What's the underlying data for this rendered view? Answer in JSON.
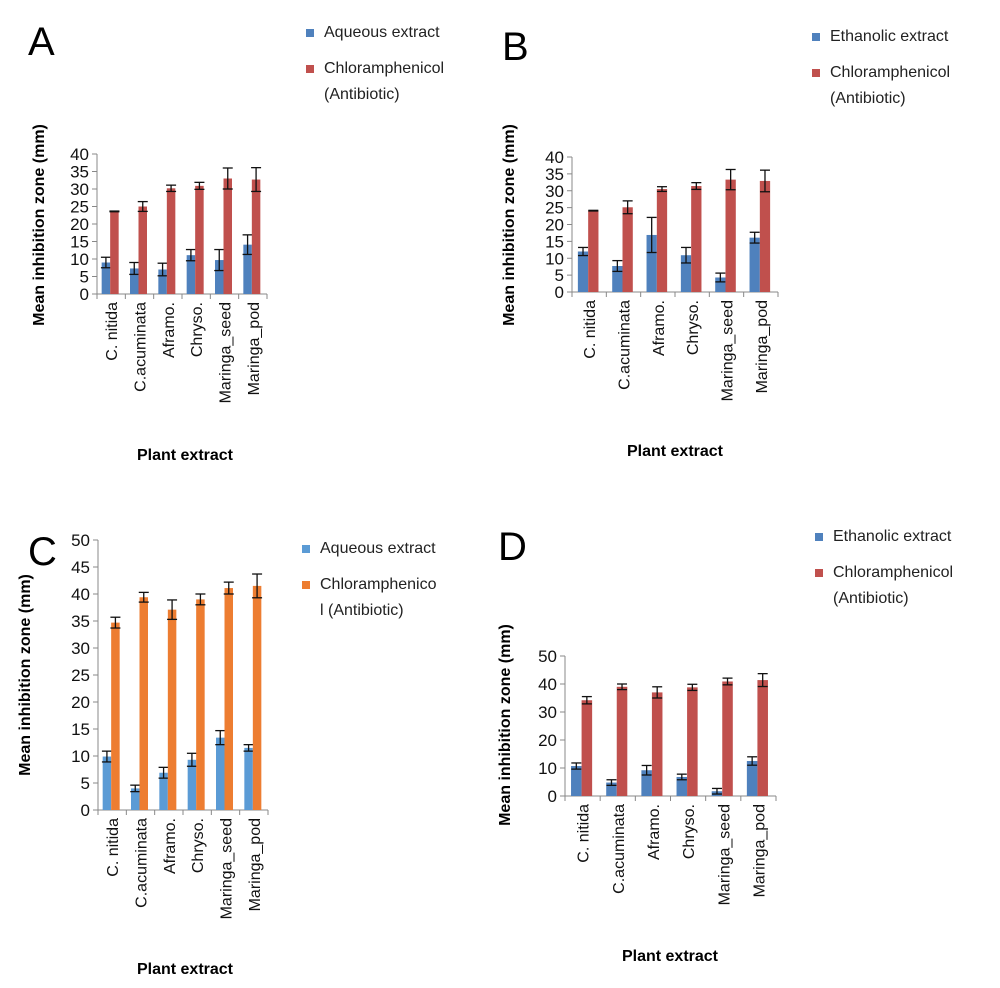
{
  "chart_data": [
    {
      "panel": "A",
      "type": "bar",
      "categories": [
        "C. nitida",
        "C.acuminata",
        "Aframo.",
        "Chryso.",
        "Maringa_seed",
        "Maringa_pod"
      ],
      "xlabel": "Plant extract",
      "ylabel": "Mean inhibition zone (mm)",
      "ylim": [
        0,
        40
      ],
      "ytick_step": 5,
      "grid": false,
      "legend": "right",
      "series": [
        {
          "name": "Aqueous extract",
          "color": "#4f81bd",
          "values": [
            9.0,
            7.3,
            7.0,
            11.1,
            9.7,
            14.1
          ],
          "errors": [
            1.5,
            1.7,
            1.8,
            1.6,
            3.0,
            2.8
          ]
        },
        {
          "name": "Chloramphenicol (Antibiotic)",
          "color": "#c0504d",
          "values": [
            23.6,
            25.0,
            30.2,
            30.9,
            33.0,
            32.7
          ],
          "errors": [
            0.1,
            1.4,
            0.9,
            1.0,
            3.0,
            3.4
          ]
        }
      ]
    },
    {
      "panel": "B",
      "type": "bar",
      "categories": [
        "C. nitida",
        "C.acuminata",
        "Aframo.",
        "Chryso.",
        "Maringa_seed",
        "Maringa_pod"
      ],
      "xlabel": "Plant extract",
      "ylabel": "Mean inhibition zone (mm)",
      "ylim": [
        0,
        40
      ],
      "ytick_step": 5,
      "grid": false,
      "legend": "right",
      "series": [
        {
          "name": "Ethanolic extract",
          "color": "#4f81bd",
          "values": [
            12.0,
            7.7,
            16.9,
            10.9,
            4.3,
            16.1
          ],
          "errors": [
            1.2,
            1.6,
            5.2,
            2.3,
            1.3,
            1.6
          ]
        },
        {
          "name": "Chloramphenicol (Antibiotic)",
          "color": "#c0504d",
          "values": [
            24.1,
            25.1,
            30.5,
            31.4,
            33.3,
            32.9
          ],
          "errors": [
            0.1,
            1.9,
            0.7,
            1.0,
            3.0,
            3.2
          ]
        }
      ]
    },
    {
      "panel": "C",
      "type": "bar",
      "categories": [
        "C. nitida",
        "C.acuminata",
        "Aframo.",
        "Chryso.",
        "Maringa_seed",
        "Maringa_pod"
      ],
      "xlabel": "Plant extract",
      "ylabel": "Mean inhibition zone (mm)",
      "ylim": [
        0,
        50
      ],
      "ytick_step": 5,
      "grid": false,
      "legend": "right",
      "series": [
        {
          "name": "Aqueous extract",
          "color": "#5b9bd5",
          "values": [
            9.9,
            4.0,
            6.9,
            9.3,
            13.4,
            11.5
          ],
          "errors": [
            1.0,
            0.6,
            1.0,
            1.2,
            1.3,
            0.6
          ]
        },
        {
          "name": "Chloramphenicol (Antibiotic)",
          "color": "#ed7d31",
          "values": [
            34.7,
            39.4,
            37.1,
            39.0,
            41.1,
            41.5
          ],
          "errors": [
            1.0,
            0.9,
            1.8,
            1.0,
            1.1,
            2.2
          ]
        }
      ]
    },
    {
      "panel": "D",
      "type": "bar",
      "categories": [
        "C. nitida",
        "C.acuminata",
        "Aframo.",
        "Chryso.",
        "Maringa_seed",
        "Maringa_pod"
      ],
      "xlabel": "Plant extract",
      "ylabel": "Mean inhibition zone (mm)",
      "ylim": [
        0,
        50
      ],
      "ytick_step": 10,
      "grid": false,
      "legend": "right",
      "series": [
        {
          "name": "Ethanolic extract",
          "color": "#4f81bd",
          "values": [
            10.7,
            4.8,
            9.2,
            6.8,
            1.7,
            12.5
          ],
          "errors": [
            1.1,
            1.0,
            1.7,
            1.0,
            1.0,
            1.5
          ]
        },
        {
          "name": "Chloramphenicol (Antibiotic)",
          "color": "#c0504d",
          "values": [
            34.2,
            39.0,
            37.0,
            38.8,
            40.9,
            41.4
          ],
          "errors": [
            1.3,
            1.0,
            2.0,
            1.1,
            1.2,
            2.3
          ]
        }
      ]
    }
  ]
}
